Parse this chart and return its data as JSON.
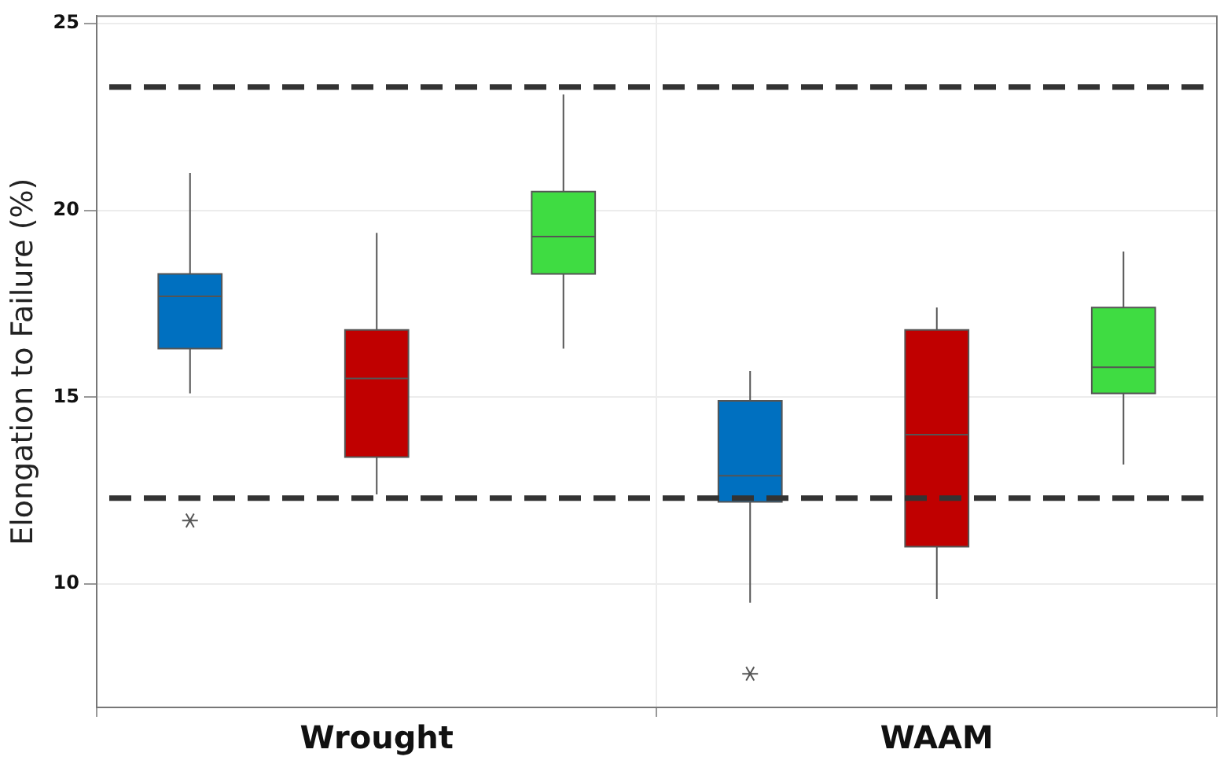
{
  "chart_data": {
    "type": "box",
    "ylabel": "Elongation to Failure (%)",
    "categories": [
      "Wrought",
      "WAAM"
    ],
    "series": [
      {
        "color": "#0070c0",
        "boxes": [
          {
            "low": 15.1,
            "q1": 16.3,
            "median": 17.7,
            "q3": 18.3,
            "high": 21.0,
            "outliers": [
              11.7
            ]
          },
          {
            "low": 9.5,
            "q1": 12.2,
            "median": 12.9,
            "q3": 14.9,
            "high": 15.7,
            "outliers": [
              7.6
            ]
          }
        ]
      },
      {
        "color": "#c00000",
        "boxes": [
          {
            "low": 12.4,
            "q1": 13.4,
            "median": 15.5,
            "q3": 16.8,
            "high": 19.4
          },
          {
            "low": 9.6,
            "q1": 11.0,
            "median": 14.0,
            "q3": 16.8,
            "high": 17.4
          }
        ]
      },
      {
        "color": "#3fdc42",
        "boxes": [
          {
            "low": 16.3,
            "q1": 18.3,
            "median": 19.3,
            "q3": 20.5,
            "high": 23.1
          },
          {
            "low": 13.2,
            "q1": 15.1,
            "median": 15.8,
            "q3": 17.4,
            "high": 18.9
          }
        ]
      }
    ],
    "ylim": [
      6.7,
      25.2
    ],
    "yticks": [
      10,
      15,
      20,
      25
    ],
    "grid": true,
    "legend": false,
    "ref_lines": [
      {
        "axis": "y",
        "value": 23.3,
        "color": "#333333",
        "line_style": "dashed"
      },
      {
        "axis": "y",
        "value": 12.3,
        "color": "#333333",
        "line_style": "dashed"
      }
    ]
  }
}
